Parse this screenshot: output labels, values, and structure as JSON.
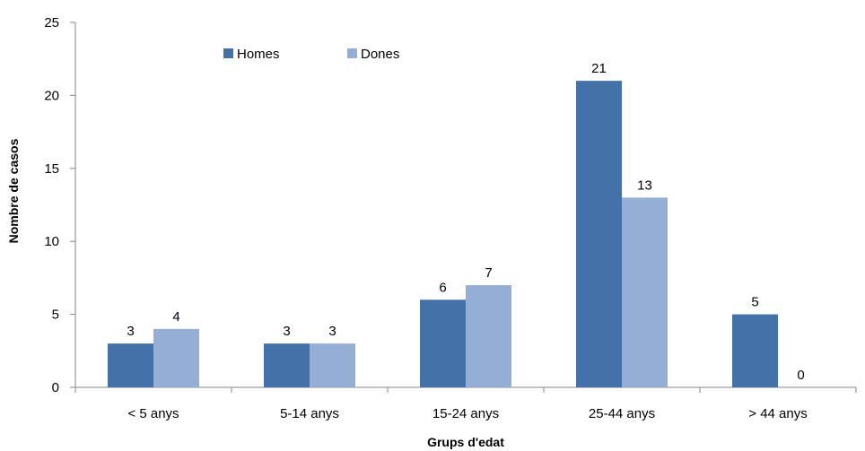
{
  "chart_data": {
    "type": "bar",
    "title": "",
    "xlabel": "Grups  d'edat",
    "ylabel": "Nombre de casos",
    "categories": [
      "< 5 anys",
      "5-14 anys",
      "15-24 anys",
      "25-44 anys",
      "> 44 anys"
    ],
    "series": [
      {
        "name": "Homes",
        "values": [
          3,
          3,
          6,
          21,
          5
        ],
        "color": "#4472A8"
      },
      {
        "name": "Dones",
        "values": [
          4,
          3,
          7,
          13,
          0
        ],
        "color": "#95AED6"
      }
    ],
    "ylim": [
      0,
      25
    ],
    "yticks": [
      0,
      5,
      10,
      15,
      20,
      25
    ],
    "grid": false,
    "legend_position": "top-left",
    "data_labels": true
  }
}
